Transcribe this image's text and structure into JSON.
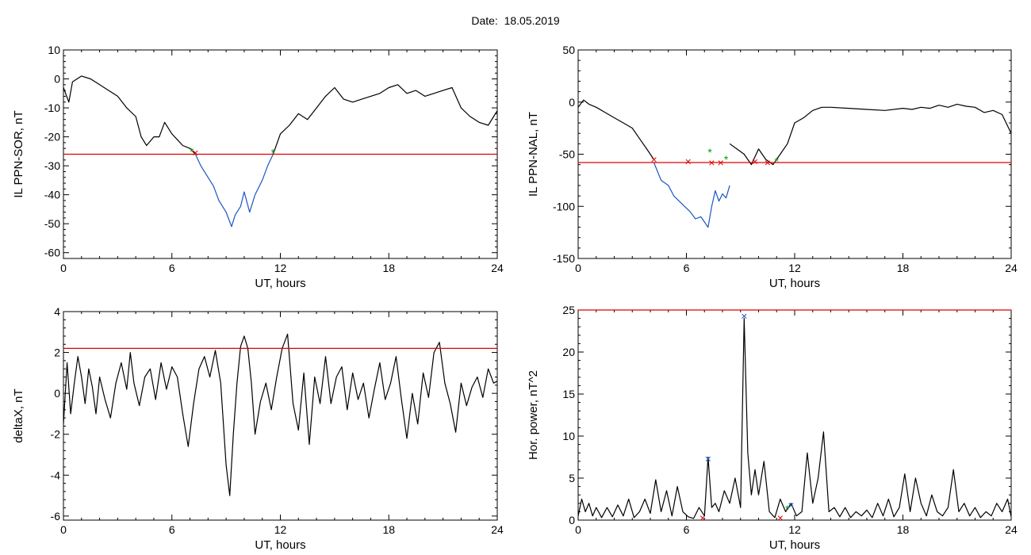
{
  "page_title": "Date:  18.05.2019",
  "chart_data": [
    {
      "type": "line",
      "ylabel": "IL PPN-SOR, nT",
      "xlabel": "UT, hours",
      "xlim": [
        0,
        24
      ],
      "ylim": [
        -62,
        10
      ],
      "xticks": [
        0,
        6,
        12,
        18,
        24
      ],
      "yticks": [
        -60,
        -50,
        -40,
        -30,
        -20,
        -10,
        0,
        10
      ],
      "threshold": -26,
      "threshold_color": "#e00000",
      "series": [
        {
          "color": "#000000",
          "x": [
            0,
            0.3,
            0.5,
            1,
            1.5,
            2,
            2.5,
            3,
            3.5,
            4,
            4.3,
            4.6,
            5,
            5.3,
            5.6,
            6,
            6.3,
            6.6,
            7,
            7.3
          ],
          "y": [
            -3,
            -8,
            -1,
            1,
            0,
            -2,
            -4,
            -6,
            -10,
            -13,
            -20,
            -23,
            -20,
            -20,
            -15,
            -19,
            -21,
            -23,
            -24,
            -26
          ]
        },
        {
          "color": "#1a56c0",
          "x": [
            7.3,
            7.6,
            8,
            8.3,
            8.6,
            9,
            9.3,
            9.5,
            9.8,
            10,
            10.3,
            10.6,
            11,
            11.3,
            11.6
          ],
          "y": [
            -26,
            -30,
            -34,
            -37,
            -42,
            -46,
            -51,
            -47,
            -44,
            -39,
            -46,
            -40,
            -35,
            -30,
            -26
          ]
        },
        {
          "color": "#000000",
          "x": [
            11.6,
            12,
            12.5,
            13,
            13.5,
            14,
            14.5,
            15,
            15.5,
            16,
            16.5,
            17,
            17.5,
            18,
            18.5,
            19,
            19.5,
            20,
            20.5,
            21,
            21.5,
            22,
            22.5,
            23,
            23.5,
            24
          ],
          "y": [
            -26,
            -19,
            -16,
            -12,
            -14,
            -10,
            -6,
            -3,
            -7,
            -8,
            -7,
            -6,
            -5,
            -3,
            -2,
            -5,
            -4,
            -6,
            -5,
            -4,
            -3,
            -10,
            -13,
            -15,
            -16,
            -11
          ]
        }
      ],
      "markers": [
        {
          "x": 7.3,
          "y": -25.5,
          "color": "#e00000",
          "symbol": "×"
        },
        {
          "x": 7.1,
          "y": -25,
          "color": "#00a000",
          "symbol": "*"
        },
        {
          "x": 11.6,
          "y": -25.5,
          "color": "#00a000",
          "symbol": "*"
        }
      ]
    },
    {
      "type": "line",
      "ylabel": "IL PPN-NAL, nT",
      "xlabel": "UT, hours",
      "xlim": [
        0,
        24
      ],
      "ylim": [
        -150,
        50
      ],
      "xticks": [
        0,
        6,
        12,
        18,
        24
      ],
      "yticks": [
        -150,
        -100,
        -50,
        0,
        50
      ],
      "threshold": -58,
      "threshold_color": "#e00000",
      "series": [
        {
          "color": "#000000",
          "x": [
            0,
            0.3,
            0.6,
            1,
            1.5,
            2,
            2.5,
            3,
            3.4,
            3.8,
            4.2
          ],
          "y": [
            -5,
            2,
            -2,
            -5,
            -10,
            -15,
            -20,
            -25,
            -35,
            -45,
            -55
          ]
        },
        {
          "color": "#1a56c0",
          "x": [
            4.2,
            4.6,
            5,
            5.3,
            5.6,
            5.9,
            6.2,
            6.5,
            6.8,
            7.0,
            7.2,
            7.4,
            7.6,
            7.8,
            8.0,
            8.2,
            8.4
          ],
          "y": [
            -58,
            -75,
            -80,
            -90,
            -95,
            -100,
            -105,
            -112,
            -110,
            -115,
            -120,
            -100,
            -85,
            -95,
            -88,
            -92,
            -80
          ]
        },
        {
          "color": "#000000",
          "x": [
            8.4,
            8.8,
            9.2,
            9.6,
            10,
            10.4,
            10.8,
            11.2,
            11.6,
            12,
            12.5,
            13,
            13.5,
            14,
            15,
            16,
            17,
            18,
            18.5,
            19,
            19.5,
            20,
            20.5,
            21,
            21.5,
            22,
            22.5,
            23,
            23.5,
            24
          ],
          "y": [
            -40,
            -45,
            -50,
            -60,
            -45,
            -55,
            -60,
            -50,
            -40,
            -20,
            -15,
            -8,
            -5,
            -5,
            -6,
            -7,
            -8,
            -6,
            -7,
            -5,
            -6,
            -3,
            -5,
            -2,
            -4,
            -5,
            -10,
            -8,
            -12,
            -30
          ]
        }
      ],
      "markers": [
        {
          "x": 4.2,
          "y": -55,
          "color": "#e00000",
          "symbol": "×"
        },
        {
          "x": 6.1,
          "y": -57,
          "color": "#e00000",
          "symbol": "×"
        },
        {
          "x": 7.3,
          "y": -48,
          "color": "#00a000",
          "symbol": "*"
        },
        {
          "x": 7.4,
          "y": -58,
          "color": "#e00000",
          "symbol": "×"
        },
        {
          "x": 7.9,
          "y": -58,
          "color": "#e00000",
          "symbol": "×"
        },
        {
          "x": 8.2,
          "y": -55,
          "color": "#00a000",
          "symbol": "*"
        },
        {
          "x": 9.8,
          "y": -57,
          "color": "#e00000",
          "symbol": "×"
        },
        {
          "x": 10.5,
          "y": -58,
          "color": "#e00000",
          "symbol": "×"
        },
        {
          "x": 11.0,
          "y": -57,
          "color": "#00a000",
          "symbol": "*"
        }
      ]
    },
    {
      "type": "line",
      "ylabel": "deltaX, nT",
      "xlabel": "UT, hours",
      "xlim": [
        0,
        24
      ],
      "ylim": [
        -6.2,
        4
      ],
      "xticks": [
        0,
        6,
        12,
        18,
        24
      ],
      "yticks": [
        -6,
        -4,
        -2,
        0,
        2,
        4
      ],
      "threshold": 2.2,
      "threshold_color": "#e00000",
      "series": [
        {
          "color": "#000000",
          "x": [
            0,
            0.2,
            0.4,
            0.6,
            0.8,
            1,
            1.2,
            1.4,
            1.6,
            1.8,
            2,
            2.3,
            2.6,
            2.9,
            3.2,
            3.5,
            3.7,
            3.9,
            4.2,
            4.5,
            4.8,
            5.1,
            5.4,
            5.7,
            6,
            6.3,
            6.6,
            6.9,
            7.2,
            7.5,
            7.8,
            8.1,
            8.4,
            8.7,
            9,
            9.2,
            9.4,
            9.6,
            9.8,
            10,
            10.2,
            10.4,
            10.6,
            10.9,
            11.2,
            11.5,
            11.8,
            12.1,
            12.4,
            12.7,
            13,
            13.3,
            13.6,
            13.9,
            14.2,
            14.5,
            14.8,
            15.1,
            15.4,
            15.7,
            16,
            16.3,
            16.6,
            16.9,
            17.2,
            17.5,
            17.8,
            18.1,
            18.4,
            18.7,
            19,
            19.3,
            19.6,
            19.9,
            20.2,
            20.5,
            20.8,
            21.1,
            21.4,
            21.7,
            22,
            22.3,
            22.6,
            22.9,
            23.2,
            23.5,
            23.8,
            24
          ],
          "y": [
            -1.5,
            1.5,
            -1,
            0.5,
            1.8,
            0.8,
            -0.5,
            1.2,
            0.3,
            -1,
            0.8,
            -0.3,
            -1.2,
            0.5,
            1.5,
            0.2,
            2,
            0.5,
            -0.6,
            0.8,
            1.2,
            -0.3,
            1.5,
            0.2,
            1.3,
            0.8,
            -1,
            -2.6,
            -0.5,
            1.2,
            1.8,
            0.8,
            2.1,
            0.5,
            -3.5,
            -5,
            -2,
            0.5,
            2.3,
            2.8,
            2.2,
            0.5,
            -2,
            -0.4,
            0.5,
            -0.8,
            0.8,
            2.2,
            2.9,
            -0.5,
            -1.8,
            1,
            -2.5,
            0.8,
            -0.5,
            1.8,
            -0.5,
            0.8,
            1.3,
            -0.8,
            1,
            -0.3,
            0.5,
            -1.2,
            0.2,
            1.5,
            -0.3,
            0.5,
            1.8,
            -0.3,
            -2.2,
            0,
            -1.5,
            1,
            -0.2,
            2,
            2.5,
            0.5,
            -0.5,
            -1.9,
            0.5,
            -0.6,
            0.3,
            0.8,
            -0.2,
            1.2,
            0.5,
            0.6
          ]
        }
      ],
      "markers": []
    },
    {
      "type": "line",
      "ylabel": "Hor. power, nT^2",
      "xlabel": "UT, hours",
      "xlim": [
        0,
        24
      ],
      "ylim": [
        0,
        25
      ],
      "xticks": [
        0,
        6,
        12,
        18,
        24
      ],
      "yticks": [
        0,
        5,
        10,
        15,
        20,
        25
      ],
      "threshold": 25,
      "threshold_color": "#e00000",
      "series": [
        {
          "color": "#000000",
          "x": [
            0,
            0.2,
            0.4,
            0.6,
            0.8,
            1,
            1.3,
            1.6,
            1.9,
            2.2,
            2.5,
            2.8,
            3.1,
            3.4,
            3.7,
            4,
            4.3,
            4.6,
            4.9,
            5.2,
            5.5,
            5.8,
            6.1,
            6.4,
            6.7,
            7,
            7.2,
            7.4,
            7.6,
            7.8,
            8.1,
            8.4,
            8.7,
            9,
            9.2,
            9.4,
            9.6,
            9.8,
            10,
            10.3,
            10.6,
            10.9,
            11.2,
            11.5,
            11.8,
            12.1,
            12.4,
            12.7,
            13,
            13.3,
            13.6,
            13.9,
            14.2,
            14.5,
            14.8,
            15.1,
            15.4,
            15.7,
            16,
            16.3,
            16.6,
            16.9,
            17.2,
            17.5,
            17.8,
            18.1,
            18.4,
            18.7,
            19,
            19.3,
            19.6,
            19.9,
            20.2,
            20.5,
            20.8,
            21.1,
            21.4,
            21.7,
            22,
            22.3,
            22.6,
            22.9,
            23.2,
            23.5,
            23.8,
            24
          ],
          "y": [
            0.5,
            2.5,
            1,
            2,
            0.5,
            1.5,
            0.3,
            1.5,
            0.4,
            1.8,
            0.5,
            2.5,
            0.3,
            1,
            2.5,
            0.8,
            4.8,
            1,
            3.5,
            0.5,
            4,
            1,
            0.4,
            0.2,
            1.5,
            0.5,
            7.5,
            1.5,
            2,
            1,
            3.5,
            2,
            5,
            1.5,
            24,
            8,
            3,
            6,
            3,
            7,
            1,
            0.3,
            2.5,
            1,
            2,
            0.5,
            1,
            8,
            2,
            5,
            10.5,
            1,
            1.5,
            0.4,
            1.5,
            0.3,
            1,
            0.5,
            1.2,
            0.3,
            2,
            0.5,
            2.5,
            0.4,
            1.5,
            5.5,
            1,
            5,
            2,
            0.5,
            3,
            1,
            0.5,
            1.5,
            6,
            1,
            2,
            0.5,
            1.5,
            0.3,
            1,
            0.5,
            2,
            1,
            2.5,
            0.4
          ]
        }
      ],
      "markers": [
        {
          "x": 7.2,
          "y": 7.3,
          "color": "#1a56c0",
          "symbol": "×"
        },
        {
          "x": 9.2,
          "y": 24.3,
          "color": "#1a56c0",
          "symbol": "×"
        },
        {
          "x": 11.8,
          "y": 1.8,
          "color": "#1a56c0",
          "symbol": "×"
        },
        {
          "x": 6.9,
          "y": 0.3,
          "color": "#e00000",
          "symbol": "×"
        },
        {
          "x": 11.2,
          "y": 0.3,
          "color": "#e00000",
          "symbol": "×"
        },
        {
          "x": 11.6,
          "y": 1.3,
          "color": "#00a000",
          "symbol": "*"
        }
      ]
    }
  ]
}
